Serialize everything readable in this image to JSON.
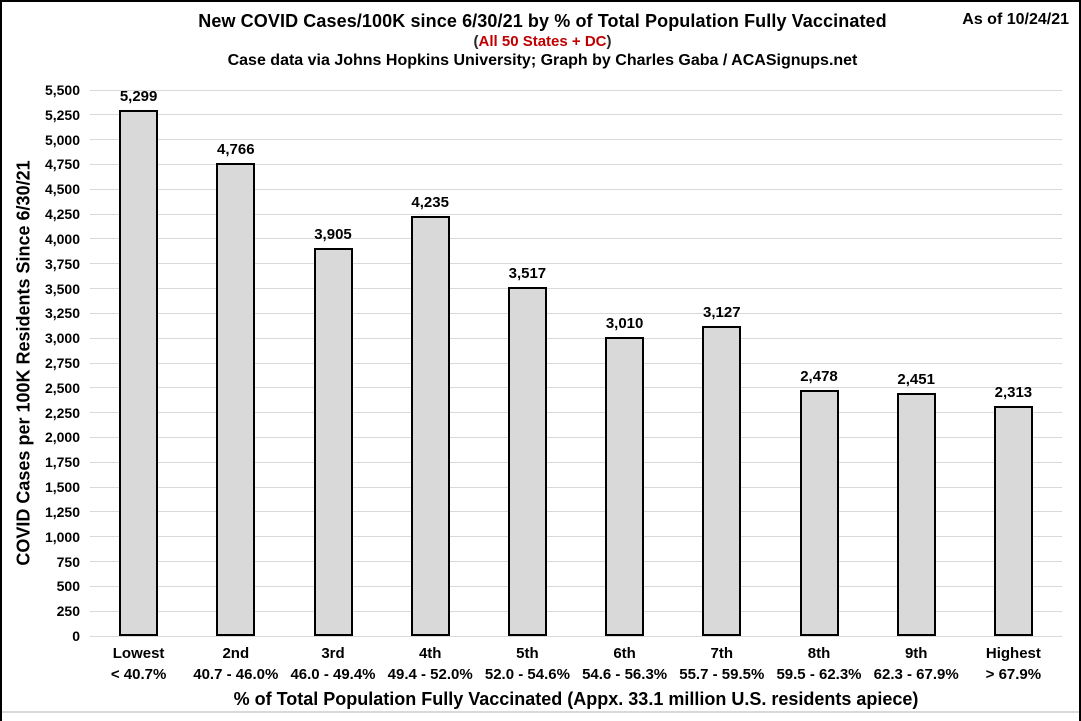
{
  "header": {
    "title": "New COVID Cases/100K since 6/30/21 by % of Total Population Fully Vaccinated",
    "subtitle_prefix": "(",
    "subtitle_red": "All 50 States + DC",
    "subtitle_suffix": ")",
    "credit": "Case data via Johns Hopkins University; Graph by Charles Gaba / ACASignups.net",
    "as_of": "As of 10/24/21"
  },
  "colors": {
    "accent_red": "#c00000",
    "bar_fill": "#d9d9d9",
    "bar_border": "#000000",
    "gridline": "#d9d9d9",
    "text": "#000000",
    "background": "#ffffff"
  },
  "chart_data": {
    "type": "bar",
    "title": "New COVID Cases/100K since 6/30/21 by % of Total Population Fully Vaccinated",
    "subtitle": "(All 50 States + DC)",
    "source_note": "Case data via Johns Hopkins University; Graph by Charles Gaba / ACASignups.net",
    "as_of": "As of 10/24/21",
    "categories": [
      "Lowest",
      "2nd",
      "3rd",
      "4th",
      "5th",
      "6th",
      "7th",
      "8th",
      "9th",
      "Highest"
    ],
    "category_ranges": [
      "< 40.7%",
      "40.7 - 46.0%",
      "46.0 - 49.4%",
      "49.4 - 52.0%",
      "52.0 - 54.6%",
      "54.6 - 56.3%",
      "55.7 - 59.5%",
      "59.5 - 62.3%",
      "62.3 - 67.9%",
      "> 67.9%"
    ],
    "values": [
      5299,
      4766,
      3905,
      4235,
      3517,
      3010,
      3127,
      2478,
      2451,
      2313
    ],
    "value_labels": [
      "5,299",
      "4,766",
      "3,905",
      "4,235",
      "3,517",
      "3,010",
      "3,127",
      "2,478",
      "2,451",
      "2,313"
    ],
    "xlabel": "% of Total Population Fully Vaccinated (Appx. 33.1 million U.S. residents apiece)",
    "ylabel": "COVID Cases per 100K Residents Since 6/30/21",
    "ylim": [
      0,
      5500
    ],
    "ytick_step": 250,
    "grid": true,
    "legend": "none",
    "bar_orientation": "vertical"
  }
}
